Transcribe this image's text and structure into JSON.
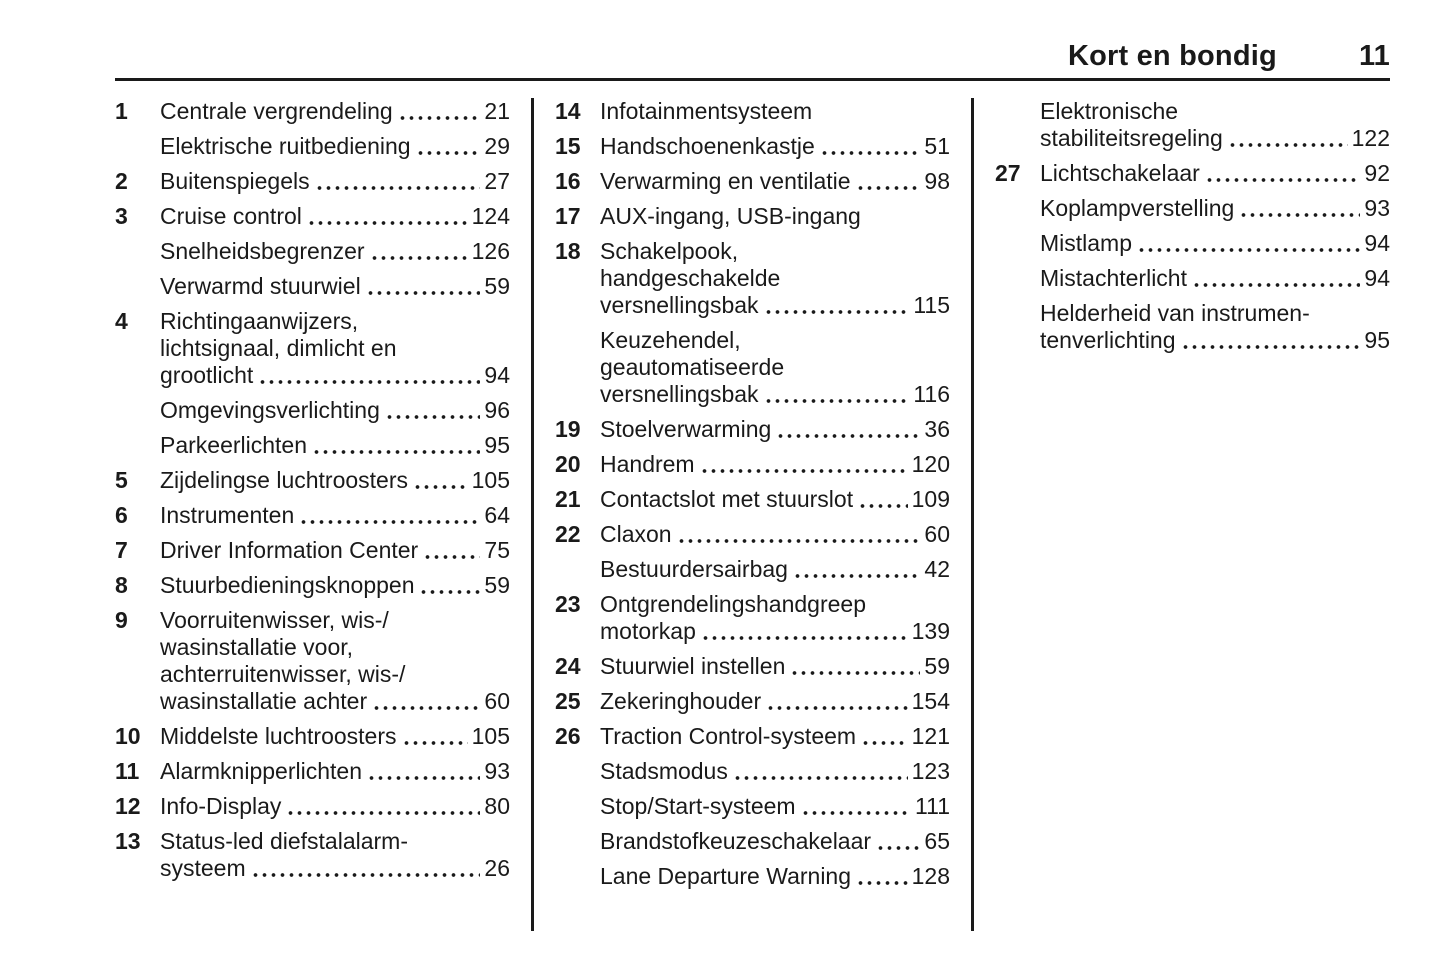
{
  "header": {
    "title": "Kort en bondig",
    "page_number": "11"
  },
  "columns": [
    {
      "entries": [
        {
          "num": "1",
          "lines": [
            "Centrale vergrendeling"
          ],
          "page": "21",
          "gap": false
        },
        {
          "num": "",
          "lines": [
            "Elektrische ruitbediening"
          ],
          "page": "29",
          "gap": false
        },
        {
          "num": "2",
          "lines": [
            "Buitenspiegels"
          ],
          "page": "27",
          "gap": false
        },
        {
          "num": "3",
          "lines": [
            "Cruise control"
          ],
          "page": "124",
          "gap": false
        },
        {
          "num": "",
          "lines": [
            "Snelheidsbegrenzer"
          ],
          "page": "126",
          "gap": true
        },
        {
          "num": "",
          "lines": [
            "Verwarmd stuurwiel"
          ],
          "page": "59",
          "gap": false
        },
        {
          "num": "4",
          "lines": [
            "Richtingaanwijzers,",
            "lichtsignaal, dimlicht en",
            "grootlicht"
          ],
          "page": "94",
          "gap": false
        },
        {
          "num": "",
          "lines": [
            "Omgevingsverlichting"
          ],
          "page": "96",
          "gap": true
        },
        {
          "num": "",
          "lines": [
            "Parkeerlichten"
          ],
          "page": "95",
          "gap": true
        },
        {
          "num": "5",
          "lines": [
            "Zijdelingse luchtroosters"
          ],
          "page": "105",
          "gap": false
        },
        {
          "num": "6",
          "lines": [
            "Instrumenten"
          ],
          "page": "64",
          "gap": false
        },
        {
          "num": "7",
          "lines": [
            "Driver Information Center"
          ],
          "page": "75",
          "gap": false
        },
        {
          "num": "8",
          "lines": [
            "Stuurbedieningsknoppen"
          ],
          "page": "59",
          "gap": false
        },
        {
          "num": "9",
          "lines": [
            "Voorruitenwisser, wis-/",
            "wasinstallatie voor,",
            "achterruitenwisser, wis-/",
            "wasinstallatie achter"
          ],
          "page": "60",
          "gap": false
        },
        {
          "num": "10",
          "lines": [
            "Middelste luchtroosters"
          ],
          "page": "105",
          "gap": false
        },
        {
          "num": "11",
          "lines": [
            "Alarmknipperlichten"
          ],
          "page": "93",
          "gap": false
        },
        {
          "num": "12",
          "lines": [
            "Info-Display"
          ],
          "page": "80",
          "gap": false
        },
        {
          "num": "13",
          "lines": [
            "Status-led diefstalalarm-",
            "systeem"
          ],
          "page": "26",
          "gap": false
        }
      ]
    },
    {
      "entries": [
        {
          "num": "14",
          "lines": [
            "Infotainmentsysteem"
          ],
          "page": "",
          "gap": false
        },
        {
          "num": "15",
          "lines": [
            "Handschoenenkastje"
          ],
          "page": "51",
          "gap": false
        },
        {
          "num": "16",
          "lines": [
            "Verwarming en ventilatie"
          ],
          "page": "98",
          "gap": false
        },
        {
          "num": "17",
          "lines": [
            "AUX-ingang, USB-ingang"
          ],
          "page": "",
          "gap": false
        },
        {
          "num": "18",
          "lines": [
            "Schakelpook,",
            "handgeschakelde",
            "versnellingsbak"
          ],
          "page": "115",
          "gap": false
        },
        {
          "num": "",
          "lines": [
            "Keuzehendel,",
            "geautomatiseerde",
            "versnellingsbak"
          ],
          "page": "116",
          "gap": false
        },
        {
          "num": "19",
          "lines": [
            "Stoelverwarming"
          ],
          "page": "36",
          "gap": false
        },
        {
          "num": "20",
          "lines": [
            "Handrem"
          ],
          "page": "120",
          "gap": false
        },
        {
          "num": "21",
          "lines": [
            "Contactslot met stuurslot"
          ],
          "page": "109",
          "gap": false
        },
        {
          "num": "22",
          "lines": [
            "Claxon"
          ],
          "page": "60",
          "gap": false
        },
        {
          "num": "",
          "lines": [
            "Bestuurdersairbag"
          ],
          "page": "42",
          "gap": true
        },
        {
          "num": "23",
          "lines": [
            "Ontgrendelingshandgreep",
            "motorkap"
          ],
          "page": "139",
          "gap": false
        },
        {
          "num": "24",
          "lines": [
            "Stuurwiel instellen"
          ],
          "page": "59",
          "gap": false
        },
        {
          "num": "25",
          "lines": [
            "Zekeringhouder"
          ],
          "page": "154",
          "gap": false
        },
        {
          "num": "26",
          "lines": [
            "Traction Control-systeem"
          ],
          "page": "121",
          "gap": false
        },
        {
          "num": "",
          "lines": [
            "Stadsmodus"
          ],
          "page": "123",
          "gap": false
        },
        {
          "num": "",
          "lines": [
            "Stop/Start-systeem"
          ],
          "page": "111",
          "gap": false
        },
        {
          "num": "",
          "lines": [
            "Brandstofkeuzeschakelaar"
          ],
          "page": "65",
          "gap": false
        },
        {
          "num": "",
          "lines": [
            "Lane Departure Warning"
          ],
          "page": "128",
          "gap": false
        }
      ]
    },
    {
      "entries": [
        {
          "num": "",
          "lines": [
            "Elektronische",
            "stabiliteitsregeling"
          ],
          "page": "122",
          "gap": false
        },
        {
          "num": "27",
          "lines": [
            "Lichtschakelaar"
          ],
          "page": "92",
          "gap": false
        },
        {
          "num": "",
          "lines": [
            "Koplampverstelling"
          ],
          "page": "93",
          "gap": true
        },
        {
          "num": "",
          "lines": [
            "Mistlamp"
          ],
          "page": "94",
          "gap": false
        },
        {
          "num": "",
          "lines": [
            "Mistachterlicht"
          ],
          "page": "94",
          "gap": false
        },
        {
          "num": "",
          "lines": [
            "Helderheid van instrumen-",
            "tenverlichting"
          ],
          "page": "95",
          "gap": true
        }
      ]
    }
  ]
}
